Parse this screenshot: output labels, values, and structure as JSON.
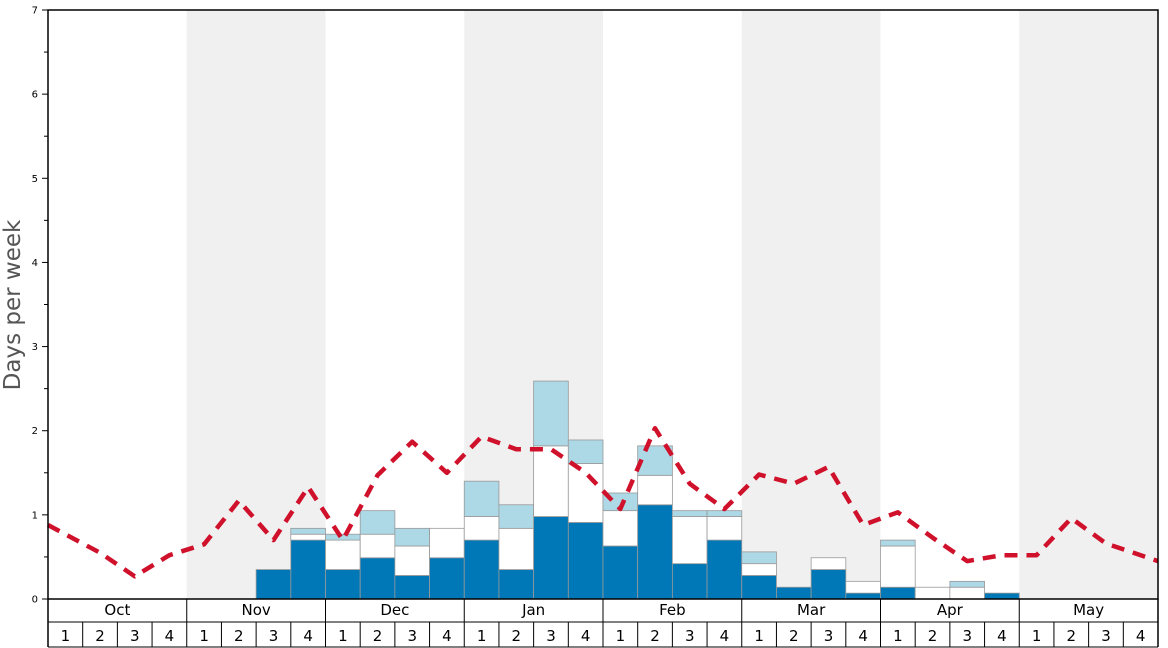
{
  "chart_data": {
    "type": "bar",
    "ylabel": "Days per week",
    "ylim": [
      0,
      7
    ],
    "y_ticks": [
      "0",
      "1",
      "2",
      "3",
      "4",
      "5",
      "6",
      "7"
    ],
    "months": [
      "Oct",
      "Nov",
      "Dec",
      "Jan",
      "Feb",
      "Mar",
      "Apr",
      "May"
    ],
    "weeks": [
      "1",
      "2",
      "3",
      "4"
    ],
    "colors": {
      "dark": "#0077b6",
      "mid": "#ffffff",
      "light": "#add8e6",
      "line": "#d0112b",
      "shade": "#f0f0f0"
    },
    "series": [
      {
        "values": [
          0,
          0,
          0,
          0,
          0,
          0,
          0.35,
          0.7,
          0.35,
          0.49,
          0.28,
          0.49,
          0.7,
          0.35,
          0.98,
          0.91,
          0.63,
          1.12,
          0.42,
          0.7,
          0.28,
          0.14,
          0.35,
          0.07,
          0.14,
          0,
          0,
          0.07,
          0,
          0,
          0,
          0
        ]
      },
      {
        "values": [
          0,
          0,
          0,
          0,
          0,
          0,
          0,
          0.07,
          0.35,
          0.28,
          0.35,
          0.35,
          0.28,
          0.49,
          0.84,
          0.7,
          0.42,
          0.35,
          0.56,
          0.28,
          0.14,
          0,
          0.14,
          0.14,
          0.49,
          0.14,
          0.14,
          0,
          0,
          0,
          0,
          0
        ]
      },
      {
        "values": [
          0,
          0,
          0,
          0,
          0,
          0,
          0,
          0.07,
          0.07,
          0.28,
          0.21,
          0,
          0.42,
          0.28,
          0.77,
          0.28,
          0.21,
          0.35,
          0.07,
          0.07,
          0.14,
          0,
          0,
          0,
          0.07,
          0,
          0.07,
          0,
          0,
          0,
          0,
          0
        ]
      },
      {
        "type": "line",
        "values": [
          0.88,
          0.55,
          0.27,
          0.52,
          0.65,
          1.17,
          0.7,
          1.33,
          0.7,
          1.47,
          1.87,
          1.5,
          1.93,
          1.78,
          1.78,
          1.5,
          1.07,
          2.03,
          1.37,
          1.07,
          1.48,
          1.37,
          1.57,
          0.88,
          1.03,
          0.73,
          0.45,
          0.52,
          0.52,
          0.96,
          0.66,
          0.45
        ]
      }
    ]
  }
}
